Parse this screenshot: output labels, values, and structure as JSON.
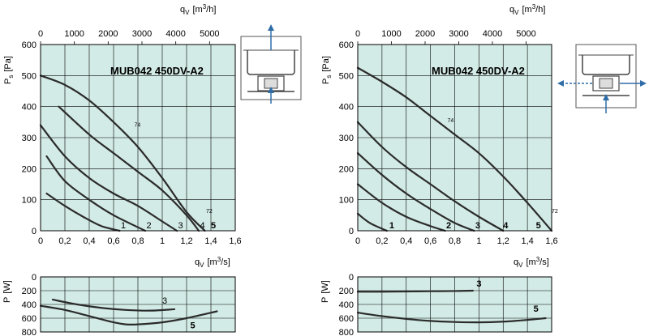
{
  "chart_data": [
    {
      "type": "line",
      "title": "MUB042 450DV-A2",
      "xlabel_main": "q",
      "xlabel_sub": "V",
      "xlabel_unit": "[m",
      "xlabel_exp": "3",
      "xlabel_unit_end": "/s]",
      "top_xlabel_main": "q",
      "top_xlabel_sub": "V",
      "top_xlabel_unit": "[m",
      "top_xlabel_exp": "3",
      "top_xlabel_unit_end": "/h]",
      "ylabel_main": "P",
      "ylabel_sub": "s",
      "ylabel_unit": "[Pa]",
      "xlim": [
        0,
        1.6
      ],
      "ylim": [
        0,
        600
      ],
      "xticks": [
        "0",
        "0,2",
        "0,4",
        "0,6",
        "0,8",
        "1",
        "1,2",
        "1,4",
        "1,6"
      ],
      "xtick_values": [
        0,
        0.2,
        0.4,
        0.6,
        0.8,
        1.0,
        1.2,
        1.4,
        1.6
      ],
      "yticks": [
        "0",
        "100",
        "200",
        "300",
        "400",
        "500",
        "600"
      ],
      "ytick_values": [
        0,
        100,
        200,
        300,
        400,
        500,
        600
      ],
      "top_xticks": [
        "0",
        "1000",
        "2000",
        "3000",
        "4000",
        "5000"
      ],
      "top_xtick_values": [
        0,
        1000,
        2000,
        3000,
        4000,
        5000
      ],
      "top_xlim": [
        0,
        5760
      ],
      "grid": true,
      "series": [
        {
          "name": "1",
          "x": [
            0.05,
            0.2,
            0.35,
            0.5,
            0.65
          ],
          "y": [
            120,
            80,
            45,
            15,
            0
          ]
        },
        {
          "name": "2",
          "x": [
            0.05,
            0.2,
            0.4,
            0.6,
            0.86
          ],
          "y": [
            240,
            160,
            100,
            50,
            0
          ]
        },
        {
          "name": "3",
          "x": [
            0.0,
            0.2,
            0.4,
            0.6,
            0.8,
            1.0,
            1.12
          ],
          "y": [
            340,
            240,
            170,
            120,
            80,
            30,
            0
          ]
        },
        {
          "name": "4",
          "x": [
            0.15,
            0.4,
            0.6,
            0.8,
            1.0,
            1.2,
            1.3
          ],
          "y": [
            400,
            310,
            250,
            190,
            130,
            50,
            0
          ]
        },
        {
          "name": "5",
          "x": [
            0.0,
            0.2,
            0.4,
            0.6,
            0.8,
            1.0,
            1.2,
            1.35
          ],
          "y": [
            500,
            470,
            420,
            350,
            270,
            170,
            60,
            0
          ]
        }
      ],
      "curve_labels": [
        {
          "text": "1",
          "x": 0.66,
          "y": 5,
          "bold": false
        },
        {
          "text": "2",
          "x": 0.87,
          "y": 5,
          "bold": false
        },
        {
          "text": "3",
          "x": 1.13,
          "y": 5,
          "bold": false
        },
        {
          "text": "4",
          "x": 1.31,
          "y": 5,
          "bold": false
        },
        {
          "text": "5",
          "x": 1.4,
          "y": 5,
          "bold": true
        },
        {
          "text": "74",
          "x": 0.77,
          "y": 335,
          "bold": false,
          "small": true
        },
        {
          "text": "72",
          "x": 1.36,
          "y": 58,
          "bold": false,
          "small": true
        }
      ]
    },
    {
      "type": "line",
      "ylabel_main": "P",
      "ylabel_unit": "[W]",
      "xlim": [
        0,
        1.6
      ],
      "ylim": [
        0,
        800
      ],
      "y_inverted": true,
      "yticks": [
        "0",
        "200",
        "400",
        "600",
        "800"
      ],
      "ytick_values": [
        0,
        200,
        400,
        600,
        800
      ],
      "grid": true,
      "series": [
        {
          "name": "3",
          "x": [
            0.1,
            0.3,
            0.5,
            0.7,
            0.9,
            1.1
          ],
          "y": [
            330,
            400,
            450,
            480,
            490,
            470
          ]
        },
        {
          "name": "5",
          "x": [
            0.0,
            0.2,
            0.4,
            0.6,
            0.7,
            0.8,
            1.0,
            1.2,
            1.45
          ],
          "y": [
            420,
            480,
            570,
            660,
            690,
            690,
            660,
            600,
            500
          ]
        }
      ],
      "curve_labels": [
        {
          "text": "3",
          "x": 1.0,
          "y": 400,
          "bold": false
        },
        {
          "text": "5",
          "x": 1.23,
          "y": 760,
          "bold": true
        }
      ]
    },
    {
      "type": "line",
      "title": "MUB042 450DV-A2",
      "xlabel_main": "q",
      "xlabel_sub": "V",
      "xlabel_unit": "[m",
      "xlabel_exp": "3",
      "xlabel_unit_end": "/s]",
      "top_xlabel_main": "q",
      "top_xlabel_sub": "V",
      "top_xlabel_unit": "[m",
      "top_xlabel_exp": "3",
      "top_xlabel_unit_end": "/h]",
      "ylabel_main": "P",
      "ylabel_sub": "s",
      "ylabel_unit": "[Pa]",
      "xlim": [
        0,
        1.6
      ],
      "ylim": [
        0,
        600
      ],
      "xticks": [
        "0",
        "0,2",
        "0,4",
        "0,6",
        "0,8",
        "1",
        "1,2",
        "1,4",
        "1,6"
      ],
      "xtick_values": [
        0,
        0.2,
        0.4,
        0.6,
        0.8,
        1.0,
        1.2,
        1.4,
        1.6
      ],
      "yticks": [
        "0",
        "100",
        "200",
        "300",
        "400",
        "500",
        "600"
      ],
      "ytick_values": [
        0,
        100,
        200,
        300,
        400,
        500,
        600
      ],
      "top_xticks": [
        "0",
        "1000",
        "2000",
        "3000",
        "4000",
        "5000"
      ],
      "top_xtick_values": [
        0,
        1000,
        2000,
        3000,
        4000,
        5000
      ],
      "top_xlim": [
        0,
        5760
      ],
      "grid": true,
      "series": [
        {
          "name": "1",
          "x": [
            0.0,
            0.1,
            0.24
          ],
          "y": [
            55,
            25,
            0
          ]
        },
        {
          "name": "2",
          "x": [
            0.0,
            0.2,
            0.4,
            0.6,
            0.72
          ],
          "y": [
            150,
            90,
            45,
            15,
            0
          ]
        },
        {
          "name": "3",
          "x": [
            0.0,
            0.2,
            0.4,
            0.6,
            0.8,
            0.96
          ],
          "y": [
            250,
            180,
            120,
            70,
            25,
            0
          ]
        },
        {
          "name": "4",
          "x": [
            0.0,
            0.2,
            0.4,
            0.6,
            0.8,
            1.0,
            1.2
          ],
          "y": [
            350,
            270,
            205,
            150,
            95,
            45,
            0
          ]
        },
        {
          "name": "5",
          "x": [
            0.0,
            0.2,
            0.4,
            0.6,
            0.8,
            1.0,
            1.2,
            1.4,
            1.6
          ],
          "y": [
            525,
            480,
            430,
            370,
            310,
            250,
            175,
            90,
            0
          ]
        }
      ],
      "curve_labels": [
        {
          "text": "1",
          "x": 0.26,
          "y": 5,
          "bold": true
        },
        {
          "text": "2",
          "x": 0.73,
          "y": 5,
          "bold": true
        },
        {
          "text": "3",
          "x": 0.97,
          "y": 5,
          "bold": true
        },
        {
          "text": "4",
          "x": 1.2,
          "y": 5,
          "bold": true
        },
        {
          "text": "5",
          "x": 1.47,
          "y": 5,
          "bold": true
        },
        {
          "text": "74",
          "x": 0.74,
          "y": 350,
          "bold": true,
          "small": true
        },
        {
          "text": "72",
          "x": 1.6,
          "y": 58,
          "bold": true,
          "small": true
        }
      ]
    },
    {
      "type": "line",
      "ylabel_main": "P",
      "ylabel_unit": "[W]",
      "xlim": [
        0,
        1.6
      ],
      "ylim": [
        0,
        800
      ],
      "y_inverted": true,
      "yticks": [
        "0",
        "200",
        "400",
        "600",
        "800"
      ],
      "ytick_values": [
        0,
        200,
        400,
        600,
        800
      ],
      "grid": true,
      "series": [
        {
          "name": "3",
          "x": [
            0.0,
            0.2,
            0.4,
            0.6,
            0.8,
            0.95
          ],
          "y": [
            215,
            215,
            212,
            208,
            205,
            200
          ]
        },
        {
          "name": "5",
          "x": [
            0.0,
            0.2,
            0.4,
            0.6,
            0.8,
            1.0,
            1.2,
            1.4,
            1.55
          ],
          "y": [
            520,
            570,
            610,
            640,
            655,
            660,
            650,
            625,
            600
          ]
        }
      ],
      "curve_labels": [
        {
          "text": "3",
          "x": 0.98,
          "y": 150,
          "bold": true
        },
        {
          "text": "5",
          "x": 1.45,
          "y": 520,
          "bold": true
        }
      ]
    }
  ],
  "colors": {
    "plot_bg": "#d3ebe6",
    "grid": "#000000",
    "curve": "#2b2b2b",
    "arrow": "#2f6da8",
    "icon_line": "#444444"
  },
  "icons": [
    "airflow-up-diagram-icon",
    "airflow-side-diagram-icon"
  ]
}
